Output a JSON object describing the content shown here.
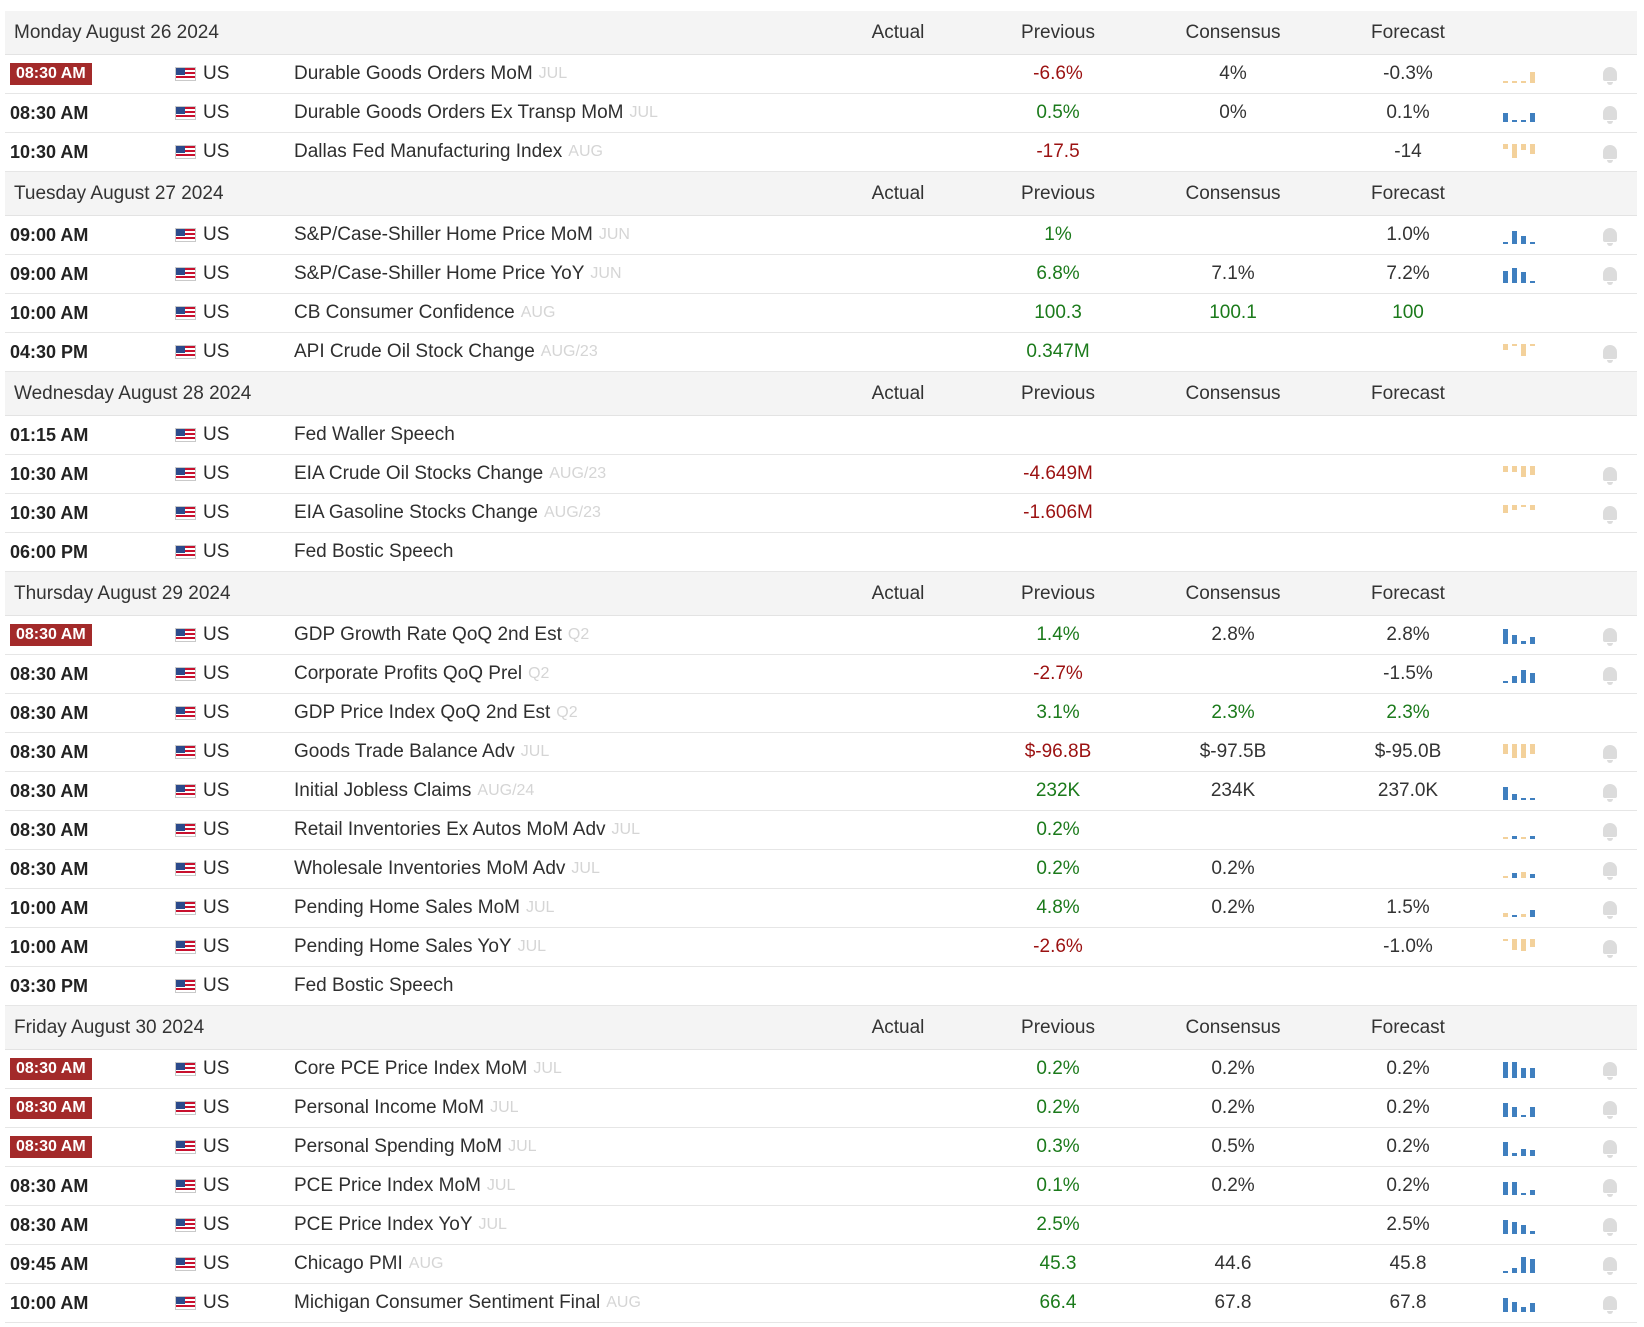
{
  "colors": {
    "positive": "#1b7a1b",
    "negative": "#9b1111",
    "high_importance": "#a32a2a",
    "spark_blue": "#3f7fbf",
    "spark_tan": "#f3d19b"
  },
  "columns": {
    "actual": "Actual",
    "previous": "Previous",
    "consensus": "Consensus",
    "forecast": "Forecast"
  },
  "days": [
    {
      "date": "Monday August 26 2024",
      "events": [
        {
          "time": "08:30 AM",
          "high": true,
          "country": "US",
          "event": "Durable Goods Orders MoM",
          "ref": "JUL",
          "actual": "",
          "previous": "-6.6%",
          "previous_tone": "neg",
          "consensus": "4%",
          "consensus_tone": "neu",
          "forecast": "-0.3%",
          "forecast_tone": "neu",
          "spark": {
            "color": "tan",
            "bars": [
              0.05,
              0.05,
              0.05,
              0.7
            ],
            "dashes": true
          },
          "bell": true
        },
        {
          "time": "08:30 AM",
          "high": false,
          "country": "US",
          "event": "Durable Goods Orders Ex Transp MoM",
          "ref": "JUL",
          "actual": "",
          "previous": "0.5%",
          "previous_tone": "pos",
          "consensus": "0%",
          "consensus_tone": "neu",
          "forecast": "0.1%",
          "forecast_tone": "neu",
          "spark": {
            "color": "blue",
            "bars": [
              0.55,
              0.05,
              0.05,
              0.55
            ]
          },
          "bell": true
        },
        {
          "time": "10:30 AM",
          "high": false,
          "country": "US",
          "event": "Dallas Fed Manufacturing Index",
          "ref": "AUG",
          "actual": "",
          "previous": "-17.5",
          "previous_tone": "neg",
          "consensus": "",
          "consensus_tone": "neu",
          "forecast": "-14",
          "forecast_tone": "neu",
          "spark": {
            "color": "tan",
            "bars": [
              0.3,
              0.9,
              0.35,
              0.6
            ],
            "top": true
          },
          "bell": true
        }
      ]
    },
    {
      "date": "Tuesday August 27 2024",
      "events": [
        {
          "time": "09:00 AM",
          "high": false,
          "country": "US",
          "event": "S&P/Case-Shiller Home Price MoM",
          "ref": "JUN",
          "actual": "",
          "previous": "1%",
          "previous_tone": "pos",
          "consensus": "",
          "consensus_tone": "neu",
          "forecast": "1.0%",
          "forecast_tone": "neu",
          "spark": {
            "color": "blue",
            "bars": [
              0.1,
              0.8,
              0.5,
              0.15
            ]
          },
          "bell": true
        },
        {
          "time": "09:00 AM",
          "high": false,
          "country": "US",
          "event": "S&P/Case-Shiller Home Price YoY",
          "ref": "JUN",
          "actual": "",
          "previous": "6.8%",
          "previous_tone": "pos",
          "consensus": "7.1%",
          "consensus_tone": "neu",
          "forecast": "7.2%",
          "forecast_tone": "neu",
          "spark": {
            "color": "blue",
            "bars": [
              0.75,
              0.95,
              0.7,
              0.15
            ]
          },
          "bell": true
        },
        {
          "time": "10:00 AM",
          "high": false,
          "country": "US",
          "event": "CB Consumer Confidence",
          "ref": "AUG",
          "actual": "",
          "previous": "100.3",
          "previous_tone": "pos",
          "consensus": "100.1",
          "consensus_tone": "pos",
          "forecast": "100",
          "forecast_tone": "pos",
          "spark": null,
          "bell": false
        },
        {
          "time": "04:30 PM",
          "high": false,
          "country": "US",
          "event": "API Crude Oil Stock Change",
          "ref": "AUG/23",
          "actual": "",
          "previous": "0.347M",
          "previous_tone": "pos",
          "consensus": "",
          "consensus_tone": "neu",
          "forecast": "",
          "forecast_tone": "neu",
          "spark": {
            "color": "tan",
            "bars": [
              0.4,
              0.1,
              0.75,
              0.1
            ],
            "top": true
          },
          "bell": true
        }
      ]
    },
    {
      "date": "Wednesday August 28 2024",
      "events": [
        {
          "time": "01:15 AM",
          "high": false,
          "country": "US",
          "event": "Fed Waller Speech",
          "ref": "",
          "actual": "",
          "previous": "",
          "previous_tone": "neu",
          "consensus": "",
          "consensus_tone": "neu",
          "forecast": "",
          "forecast_tone": "neu",
          "spark": null,
          "bell": false
        },
        {
          "time": "10:30 AM",
          "high": false,
          "country": "US",
          "event": "EIA Crude Oil Stocks Change",
          "ref": "AUG/23",
          "actual": "",
          "previous": "-4.649M",
          "previous_tone": "neg",
          "consensus": "",
          "consensus_tone": "neu",
          "forecast": "",
          "forecast_tone": "neu",
          "spark": {
            "color": "tan",
            "bars": [
              0.35,
              0.4,
              0.7,
              0.55
            ],
            "top": true
          },
          "bell": true
        },
        {
          "time": "10:30 AM",
          "high": false,
          "country": "US",
          "event": "EIA Gasoline Stocks Change",
          "ref": "AUG/23",
          "actual": "",
          "previous": "-1.606M",
          "previous_tone": "neg",
          "consensus": "",
          "consensus_tone": "neu",
          "forecast": "",
          "forecast_tone": "neu",
          "spark": {
            "color": "tan",
            "bars": [
              0.5,
              0.3,
              0.15,
              0.3
            ],
            "top": true
          },
          "bell": true
        },
        {
          "time": "06:00 PM",
          "high": false,
          "country": "US",
          "event": "Fed Bostic Speech",
          "ref": "",
          "actual": "",
          "previous": "",
          "previous_tone": "neu",
          "consensus": "",
          "consensus_tone": "neu",
          "forecast": "",
          "forecast_tone": "neu",
          "spark": null,
          "bell": false
        }
      ]
    },
    {
      "date": "Thursday August 29 2024",
      "events": [
        {
          "time": "08:30 AM",
          "high": true,
          "country": "US",
          "event": "GDP Growth Rate QoQ 2nd Est",
          "ref": "Q2",
          "actual": "",
          "previous": "1.4%",
          "previous_tone": "pos",
          "consensus": "2.8%",
          "consensus_tone": "neu",
          "forecast": "2.8%",
          "forecast_tone": "neu",
          "spark": {
            "color": "blue",
            "bars": [
              0.95,
              0.55,
              0.2,
              0.45
            ]
          },
          "bell": true
        },
        {
          "time": "08:30 AM",
          "high": false,
          "country": "US",
          "event": "Corporate Profits QoQ Prel",
          "ref": "Q2",
          "actual": "",
          "previous": "-2.7%",
          "previous_tone": "neg",
          "consensus": "",
          "consensus_tone": "neu",
          "forecast": "-1.5%",
          "forecast_tone": "neu",
          "spark": {
            "color": "blue",
            "bars": [
              0.1,
              0.45,
              0.8,
              0.6
            ]
          },
          "bell": true
        },
        {
          "time": "08:30 AM",
          "high": false,
          "country": "US",
          "event": "GDP Price Index QoQ 2nd Est",
          "ref": "Q2",
          "actual": "",
          "previous": "3.1%",
          "previous_tone": "pos",
          "consensus": "2.3%",
          "consensus_tone": "pos",
          "forecast": "2.3%",
          "forecast_tone": "pos",
          "spark": null,
          "bell": false
        },
        {
          "time": "08:30 AM",
          "high": false,
          "country": "US",
          "event": "Goods Trade Balance Adv",
          "ref": "JUL",
          "actual": "",
          "previous": "$-96.8B",
          "previous_tone": "neg",
          "consensus": "$-97.5B",
          "consensus_tone": "neu",
          "forecast": "$-95.0B",
          "forecast_tone": "neu",
          "spark": {
            "color": "tan",
            "bars": [
              0.6,
              0.85,
              0.9,
              0.65
            ],
            "top": true
          },
          "bell": true
        },
        {
          "time": "08:30 AM",
          "high": false,
          "country": "US",
          "event": "Initial Jobless Claims",
          "ref": "AUG/24",
          "actual": "",
          "previous": "232K",
          "previous_tone": "pos",
          "consensus": "234K",
          "consensus_tone": "neu",
          "forecast": "237.0K",
          "forecast_tone": "neu",
          "spark": {
            "color": "blue",
            "bars": [
              0.8,
              0.35,
              0.15,
              0.15
            ]
          },
          "bell": true
        },
        {
          "time": "08:30 AM",
          "high": false,
          "country": "US",
          "event": "Retail Inventories Ex Autos MoM Adv",
          "ref": "JUL",
          "actual": "",
          "previous": "0.2%",
          "previous_tone": "pos",
          "consensus": "",
          "consensus_tone": "neu",
          "forecast": "",
          "forecast_tone": "neu",
          "spark": {
            "color": "blue",
            "bars": [
              0.15,
              0.2,
              0.1,
              0.2
            ],
            "mixed": true
          },
          "bell": true
        },
        {
          "time": "08:30 AM",
          "high": false,
          "country": "US",
          "event": "Wholesale Inventories MoM Adv",
          "ref": "JUL",
          "actual": "",
          "previous": "0.2%",
          "previous_tone": "pos",
          "consensus": "0.2%",
          "consensus_tone": "neu",
          "forecast": "",
          "forecast_tone": "neu",
          "spark": {
            "color": "blue",
            "bars": [
              0.15,
              0.3,
              0.4,
              0.25
            ],
            "mixed": true
          },
          "bell": true
        },
        {
          "time": "10:00 AM",
          "high": false,
          "country": "US",
          "event": "Pending Home Sales MoM",
          "ref": "JUL",
          "actual": "",
          "previous": "4.8%",
          "previous_tone": "pos",
          "consensus": "0.2%",
          "consensus_tone": "neu",
          "forecast": "1.5%",
          "forecast_tone": "neu",
          "spark": {
            "color": "blue",
            "bars": [
              0.25,
              0.15,
              0.2,
              0.45
            ],
            "mixed": true
          },
          "bell": true
        },
        {
          "time": "10:00 AM",
          "high": false,
          "country": "US",
          "event": "Pending Home Sales YoY",
          "ref": "JUL",
          "actual": "",
          "previous": "-2.6%",
          "previous_tone": "neg",
          "consensus": "",
          "consensus_tone": "neu",
          "forecast": "-1.0%",
          "forecast_tone": "neu",
          "spark": {
            "color": "tan",
            "bars": [
              0.1,
              0.7,
              0.75,
              0.5
            ],
            "top": true
          },
          "bell": true
        }
      ]
    },
    {
      "date": "",
      "events": [
        {
          "time": "03:30 PM",
          "high": false,
          "country": "US",
          "event": "Fed Bostic Speech",
          "ref": "",
          "actual": "",
          "previous": "",
          "previous_tone": "neu",
          "consensus": "",
          "consensus_tone": "neu",
          "forecast": "",
          "forecast_tone": "neu",
          "spark": null,
          "bell": false
        }
      ]
    },
    {
      "date": "Friday August 30 2024",
      "events": [
        {
          "time": "08:30 AM",
          "high": true,
          "country": "US",
          "event": "Core PCE Price Index MoM",
          "ref": "JUL",
          "actual": "",
          "previous": "0.2%",
          "previous_tone": "pos",
          "consensus": "0.2%",
          "consensus_tone": "neu",
          "forecast": "0.2%",
          "forecast_tone": "neu",
          "spark": {
            "color": "blue",
            "bars": [
              1.0,
              1.0,
              0.6,
              0.6
            ]
          },
          "bell": true
        },
        {
          "time": "08:30 AM",
          "high": true,
          "country": "US",
          "event": "Personal Income MoM",
          "ref": "JUL",
          "actual": "",
          "previous": "0.2%",
          "previous_tone": "pos",
          "consensus": "0.2%",
          "consensus_tone": "neu",
          "forecast": "0.2%",
          "forecast_tone": "neu",
          "spark": {
            "color": "blue",
            "bars": [
              0.9,
              0.6,
              0.15,
              0.6
            ]
          },
          "bell": true
        },
        {
          "time": "08:30 AM",
          "high": true,
          "country": "US",
          "event": "Personal Spending MoM",
          "ref": "JUL",
          "actual": "",
          "previous": "0.3%",
          "previous_tone": "pos",
          "consensus": "0.5%",
          "consensus_tone": "neu",
          "forecast": "0.2%",
          "forecast_tone": "neu",
          "spark": {
            "color": "blue",
            "bars": [
              0.9,
              0.2,
              0.45,
              0.35
            ]
          },
          "bell": true
        },
        {
          "time": "08:30 AM",
          "high": false,
          "country": "US",
          "event": "PCE Price Index MoM",
          "ref": "JUL",
          "actual": "",
          "previous": "0.1%",
          "previous_tone": "pos",
          "consensus": "0.2%",
          "consensus_tone": "neu",
          "forecast": "0.2%",
          "forecast_tone": "neu",
          "spark": {
            "color": "blue",
            "bars": [
              0.8,
              0.8,
              0.0,
              0.3
            ]
          },
          "bell": true
        },
        {
          "time": "08:30 AM",
          "high": false,
          "country": "US",
          "event": "PCE Price Index YoY",
          "ref": "JUL",
          "actual": "",
          "previous": "2.5%",
          "previous_tone": "pos",
          "consensus": "",
          "consensus_tone": "neu",
          "forecast": "2.5%",
          "forecast_tone": "neu",
          "spark": {
            "color": "blue",
            "bars": [
              0.9,
              0.75,
              0.55,
              0.2
            ]
          },
          "bell": true
        },
        {
          "time": "09:45 AM",
          "high": false,
          "country": "US",
          "event": "Chicago PMI",
          "ref": "AUG",
          "actual": "",
          "previous": "45.3",
          "previous_tone": "pos",
          "consensus": "44.6",
          "consensus_tone": "neu",
          "forecast": "45.8",
          "forecast_tone": "neu",
          "spark": {
            "color": "blue",
            "bars": [
              0.1,
              0.3,
              1.0,
              0.85
            ]
          },
          "bell": true
        },
        {
          "time": "10:00 AM",
          "high": false,
          "country": "US",
          "event": "Michigan Consumer Sentiment Final",
          "ref": "AUG",
          "actual": "",
          "previous": "66.4",
          "previous_tone": "pos",
          "consensus": "67.8",
          "consensus_tone": "neu",
          "forecast": "67.8",
          "forecast_tone": "neu",
          "spark": {
            "color": "blue",
            "bars": [
              0.85,
              0.6,
              0.3,
              0.55
            ]
          },
          "bell": true
        }
      ]
    }
  ]
}
